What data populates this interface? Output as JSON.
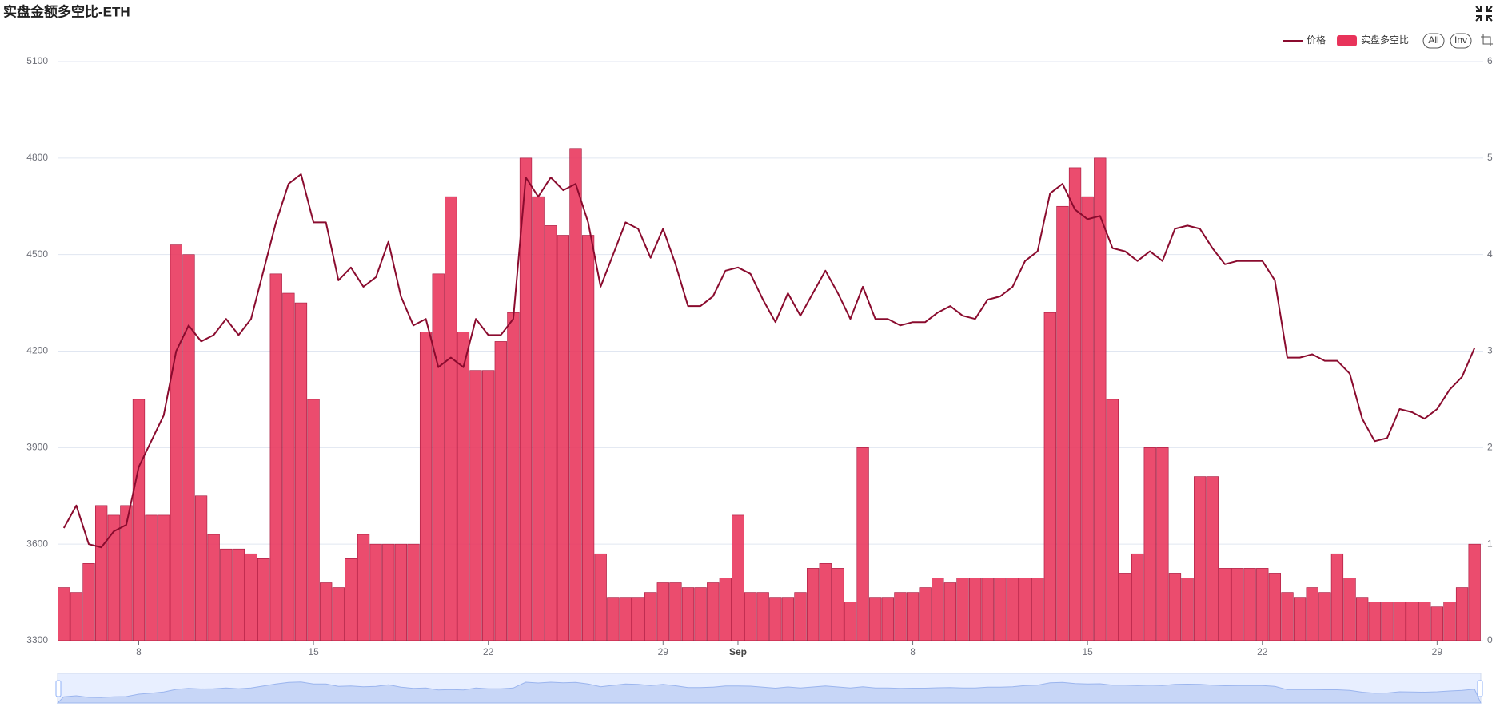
{
  "chart_data": {
    "type": "bar",
    "title": "实盘金额多空比-ETH",
    "categories": [
      null,
      null,
      null,
      null,
      null,
      null,
      "8",
      null,
      null,
      null,
      null,
      null,
      null,
      null,
      null,
      null,
      null,
      null,
      null,
      null,
      "15",
      null,
      null,
      null,
      null,
      null,
      null,
      null,
      null,
      null,
      null,
      null,
      null,
      null,
      "22",
      null,
      null,
      null,
      null,
      null,
      null,
      null,
      null,
      null,
      null,
      null,
      null,
      null,
      "29",
      null,
      null,
      null,
      null,
      null,
      "Sep",
      null,
      null,
      null,
      null,
      null,
      null,
      null,
      null,
      null,
      null,
      null,
      null,
      null,
      "8",
      null,
      null,
      null,
      null,
      null,
      null,
      null,
      null,
      null,
      null,
      null,
      null,
      null,
      "15",
      null,
      null,
      null,
      null,
      null,
      null,
      null,
      null,
      null,
      null,
      null,
      null,
      null,
      "22",
      null,
      null,
      null,
      null,
      null,
      null,
      null,
      null,
      null,
      null,
      null,
      null,
      null,
      "29",
      null,
      null,
      null
    ],
    "series": [
      {
        "name": "价格",
        "type": "line",
        "color": "#8a0b2e",
        "values": [
          3650,
          3720,
          3600,
          3590,
          3640,
          3660,
          3840,
          3920,
          4000,
          4200,
          4280,
          4230,
          4250,
          4300,
          4250,
          4300,
          4450,
          4600,
          4720,
          4750,
          4600,
          4600,
          4420,
          4460,
          4400,
          4430,
          4540,
          4370,
          4280,
          4300,
          4150,
          4180,
          4150,
          4300,
          4250,
          4250,
          4300,
          4740,
          4680,
          4740,
          4700,
          4720,
          4600,
          4400,
          4500,
          4600,
          4580,
          4490,
          4580,
          4470,
          4340,
          4340,
          4370,
          4450,
          4460,
          4440,
          4360,
          4290,
          4380,
          4310,
          4380,
          4450,
          4380,
          4300,
          4400,
          4300,
          4300,
          4280,
          4290,
          4290,
          4320,
          4340,
          4310,
          4300,
          4360,
          4370,
          4400,
          4480,
          4510,
          4690,
          4720,
          4640,
          4610,
          4620,
          4520,
          4510,
          4480,
          4510,
          4480,
          4580,
          4590,
          4580,
          4520,
          4470,
          4480,
          4480,
          4480,
          4420,
          4180,
          4180,
          4190,
          4170,
          4170,
          4130,
          3990,
          3920,
          3930,
          4020,
          4010,
          3990,
          4020,
          4080,
          4120,
          4210
        ]
      },
      {
        "name": "实盘多空比",
        "type": "bar",
        "axis": "y2",
        "color": "#e8335a",
        "values": [
          0.55,
          0.5,
          0.8,
          1.4,
          1.3,
          1.4,
          2.5,
          1.3,
          1.3,
          4.1,
          4.0,
          1.5,
          1.1,
          0.95,
          0.95,
          0.9,
          0.85,
          3.8,
          3.6,
          3.5,
          2.5,
          0.6,
          0.55,
          0.85,
          1.1,
          1.0,
          1.0,
          1.0,
          1.0,
          3.2,
          3.8,
          4.6,
          3.2,
          2.8,
          2.8,
          3.1,
          3.4,
          5.0,
          4.6,
          4.3,
          4.2,
          5.1,
          4.2,
          0.9,
          0.45,
          0.45,
          0.45,
          0.5,
          0.6,
          0.6,
          0.55,
          0.55,
          0.6,
          0.65,
          1.3,
          0.5,
          0.5,
          0.45,
          0.45,
          0.5,
          0.75,
          0.8,
          0.75,
          0.4,
          2.0,
          0.45,
          0.45,
          0.5,
          0.5,
          0.55,
          0.65,
          0.6,
          0.65,
          0.65,
          0.65,
          0.65,
          0.65,
          0.65,
          0.65,
          3.4,
          4.5,
          4.9,
          4.6,
          5.0,
          2.5,
          0.7,
          0.9,
          2.0,
          2.0,
          0.7,
          0.65,
          1.7,
          1.7,
          0.75,
          0.75,
          0.75,
          0.75,
          0.7,
          0.5,
          0.45,
          0.55,
          0.5,
          0.9,
          0.65,
          0.45,
          0.4,
          0.4,
          0.4,
          0.4,
          0.4,
          0.35,
          0.4,
          0.55,
          1.0
        ]
      }
    ],
    "ylim": [
      3300,
      5100
    ],
    "yticks": [
      3300,
      3600,
      3900,
      4200,
      4500,
      4800,
      5100
    ],
    "y2lim": [
      0,
      6
    ],
    "y2ticks": [
      0,
      1,
      2,
      3,
      4,
      5,
      6
    ],
    "grid": true
  },
  "toolbar": {
    "buttons": [
      "All",
      "Inv"
    ]
  }
}
